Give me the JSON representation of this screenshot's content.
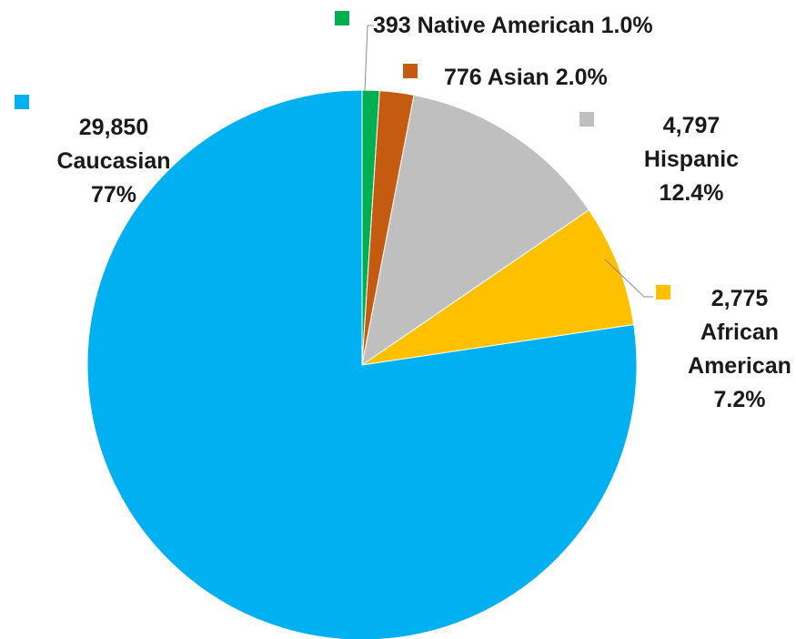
{
  "chart_data": {
    "type": "pie",
    "start_angle_deg": 0,
    "direction": "clockwise",
    "slices": [
      {
        "name": "Native American",
        "value": 393,
        "value_label": "393",
        "pct_label": "1.0%",
        "color": "#00b050"
      },
      {
        "name": "Asian",
        "value": 776,
        "value_label": "776",
        "pct_label": "2.0%",
        "color": "#c55a11"
      },
      {
        "name": "Hispanic",
        "value": 4797,
        "value_label": "4,797",
        "pct_label": "12.4%",
        "color": "#bfbfbf"
      },
      {
        "name": "African American",
        "value": 2775,
        "value_label": "2,775",
        "pct_label": "7.2%",
        "color": "#ffc000"
      },
      {
        "name": "Caucasian",
        "value": 29850,
        "value_label": "29,850",
        "pct_label": "77%",
        "color": "#00b0f0"
      }
    ],
    "labels": [
      {
        "lines": [
          "393  Native American 1.0%"
        ]
      },
      {
        "lines": [
          "776  Asian  2.0%"
        ]
      },
      {
        "lines": [
          "4,797",
          "Hispanic",
          "12.4%"
        ]
      },
      {
        "lines": [
          "2,775",
          "African",
          "American",
          "7.2%"
        ]
      },
      {
        "lines": [
          "29,850",
          "Caucasian",
          "77%"
        ]
      }
    ]
  }
}
